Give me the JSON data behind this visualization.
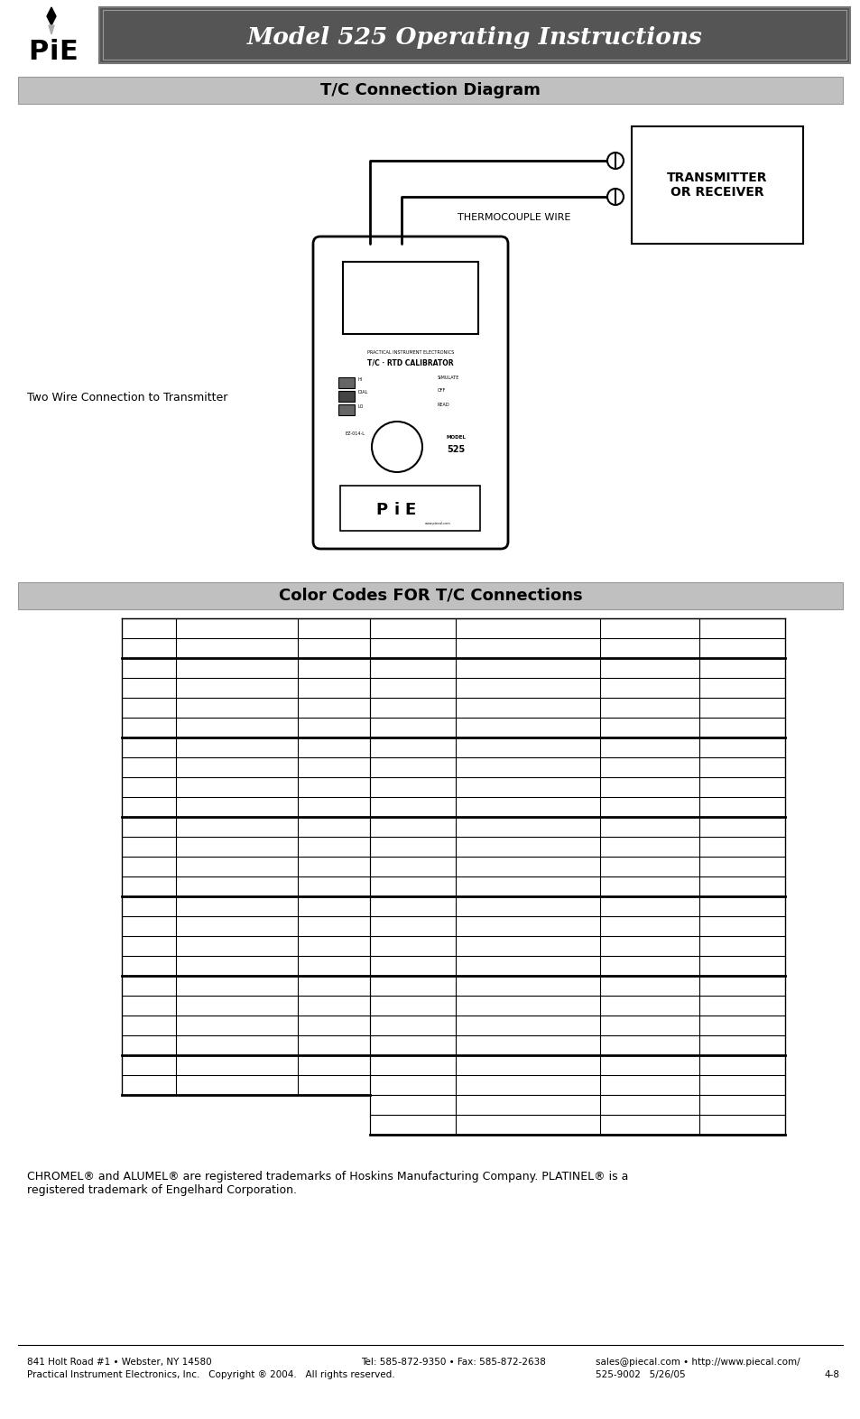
{
  "title": "Model 525 Operating Instructions",
  "section1": "T/C Connection Diagram",
  "section2": "Color Codes FOR T/C Connections",
  "tc_label": "THERMOCOUPLE WIRE",
  "transmitter_label": "TRANSMITTER\nOR RECEIVER",
  "two_wire_label": "Two Wire Connection to Transmitter",
  "chromel_note": "CHROMEL® and ALUMEL® are registered trademarks of Hoskins Manufacturing Company. PLATINEL® is a\nregistered trademark of Engelhard Corporation.",
  "footer_left1": "841 Holt Road #1 • Webster, NY 14580",
  "footer_left2": "Practical Instrument Electronics, Inc.   Copyright ® 2004.   All rights reserved.",
  "footer_mid1": "Tel: 585-872-9350 • Fax: 585-872-2638",
  "footer_right1": "sales@piecal.com • http://www.piecal.com/",
  "footer_right2": "525-9002   5/26/05",
  "footer_page": "4-8",
  "header_bg": "#555555",
  "header_text_color": "#ffffff",
  "section_bg": "#c0c0c0",
  "section_text_color": "#000000",
  "bg_color": "#ffffff"
}
